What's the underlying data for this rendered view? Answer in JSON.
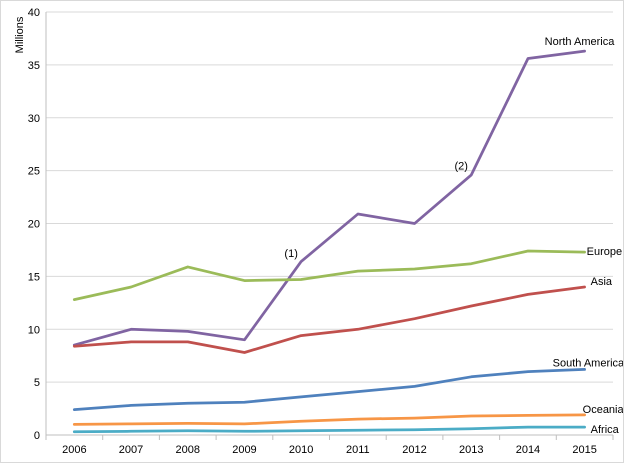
{
  "chart_data": {
    "type": "line",
    "ylabel": "Millions",
    "xlabel": "",
    "ylim": [
      0,
      40
    ],
    "yticks": [
      0,
      5,
      10,
      15,
      20,
      25,
      30,
      35,
      40
    ],
    "categories": [
      "2006",
      "2007",
      "2008",
      "2009",
      "2010",
      "2011",
      "2012",
      "2013",
      "2014",
      "2015"
    ],
    "grid": "horizontal",
    "series": [
      {
        "name": "North America",
        "color": "#8064a2",
        "values": [
          8.5,
          10.0,
          9.8,
          9.0,
          16.4,
          20.9,
          20.0,
          24.6,
          35.6,
          36.3
        ]
      },
      {
        "name": "Europe",
        "color": "#9bbb59",
        "values": [
          12.8,
          14.0,
          15.9,
          14.6,
          14.7,
          15.5,
          15.7,
          16.2,
          17.4,
          17.3
        ]
      },
      {
        "name": "Asia",
        "color": "#c0504d",
        "values": [
          8.4,
          8.8,
          8.8,
          7.8,
          9.4,
          10.0,
          11.0,
          12.2,
          13.3,
          14.0
        ]
      },
      {
        "name": "South America",
        "color": "#4f81bd",
        "values": [
          2.4,
          2.8,
          3.0,
          3.1,
          3.6,
          4.1,
          4.6,
          5.5,
          6.0,
          6.2
        ]
      },
      {
        "name": "Oceania",
        "color": "#f79646",
        "values": [
          1.0,
          1.05,
          1.1,
          1.05,
          1.3,
          1.5,
          1.6,
          1.8,
          1.85,
          1.9
        ]
      },
      {
        "name": "Africa",
        "color": "#4bacc6",
        "values": [
          0.3,
          0.35,
          0.4,
          0.35,
          0.4,
          0.45,
          0.5,
          0.6,
          0.75,
          0.75
        ]
      }
    ],
    "annotations": [
      {
        "text": "(1)",
        "x": "2010",
        "y": 17.2
      },
      {
        "text": "(2)",
        "x": "2013",
        "y": 25.5
      }
    ]
  }
}
